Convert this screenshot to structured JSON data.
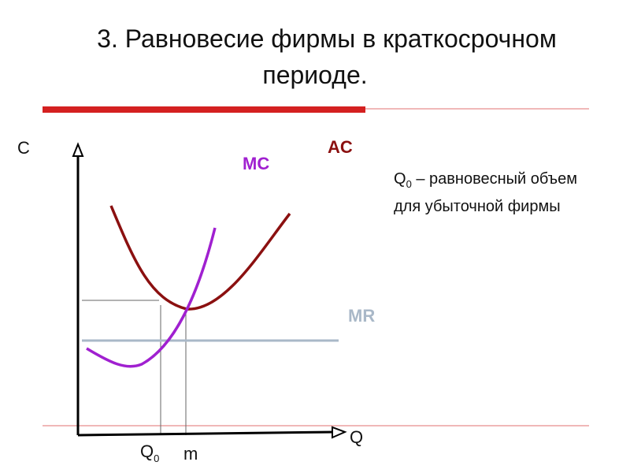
{
  "title": {
    "line1": "3. Равновесие фирмы в краткосрочном",
    "line2": "периоде."
  },
  "note": {
    "symbol": "Q",
    "subscript": "0",
    "text": " – равновесный объем для убыточной фирмы"
  },
  "axes": {
    "y_label": "C",
    "x_label": "Q"
  },
  "ticks": {
    "q0_symbol": "Q",
    "q0_subscript": "0",
    "m_label": "m"
  },
  "curves": {
    "mc_label": "MC",
    "ac_label": "AC",
    "mr_label": "MR"
  },
  "colors": {
    "title_rule": "#d42020",
    "thin_rule": "#e07070",
    "ac": "#8b1010",
    "mc": "#a020d0",
    "mr": "#a9b8c8",
    "axis": "#000000",
    "guides": "#666666"
  }
}
